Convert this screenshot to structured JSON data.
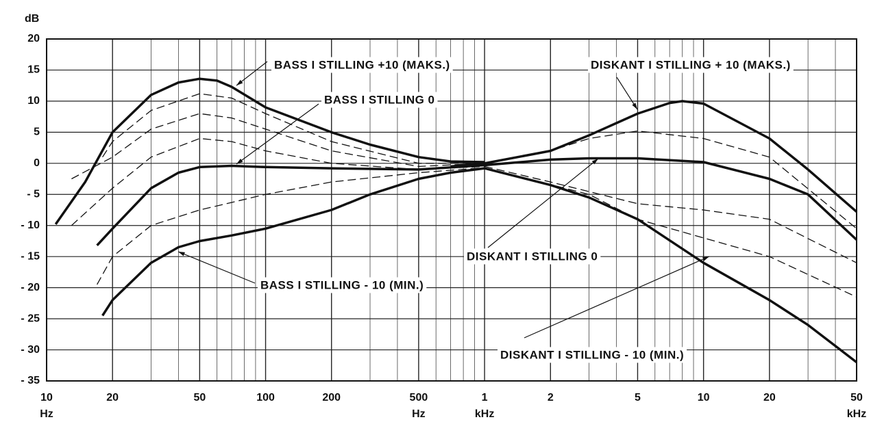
{
  "chart_data": {
    "type": "line",
    "ylabel": "dB",
    "xscale": "log",
    "grid": true,
    "xlim": [
      10,
      50000
    ],
    "ylim": [
      -35,
      20
    ],
    "xticks": [
      {
        "value": 10,
        "label": "10",
        "unit": "Hz"
      },
      20,
      50,
      100,
      200,
      {
        "value": 500,
        "label": "500",
        "unit": "Hz"
      },
      {
        "value": 1000,
        "label": "1",
        "unit": "kHz"
      },
      {
        "value": 2000,
        "label": "2"
      },
      {
        "value": 5000,
        "label": "5"
      },
      {
        "value": 10000,
        "label": "10"
      },
      {
        "value": 20000,
        "label": "20"
      },
      {
        "value": 50000,
        "label": "50",
        "unit": "kHz"
      }
    ],
    "x_minor_grid": [
      30,
      40,
      60,
      70,
      80,
      90,
      300,
      400,
      600,
      700,
      800,
      900,
      3000,
      4000,
      6000,
      7000,
      8000,
      9000,
      30000,
      40000
    ],
    "yticks": [
      20,
      15,
      10,
      5,
      0,
      {
        "value": -5,
        "label": "- 5"
      },
      {
        "value": -10,
        "label": "- 10"
      },
      {
        "value": -15,
        "label": "- 15"
      },
      {
        "value": -20,
        "label": "- 20"
      },
      {
        "value": -25,
        "label": "- 25"
      },
      {
        "value": -30,
        "label": "- 30"
      },
      {
        "value": -35,
        "label": "- 35"
      }
    ],
    "series": [
      {
        "name": "BASS I STILLING +10 (MAKS.)",
        "color": "#111",
        "x": [
          11,
          15,
          20,
          30,
          40,
          50,
          60,
          70,
          100,
          200,
          300,
          500,
          700,
          1000
        ],
        "values": [
          -9.8,
          -3,
          5,
          11,
          13,
          13.6,
          13.3,
          12.3,
          9,
          5,
          3,
          1,
          0.3,
          0.2
        ]
      },
      {
        "name": "BASS I STILLING 0",
        "color": "#111",
        "x": [
          17,
          20,
          30,
          40,
          50,
          70,
          100,
          200,
          500,
          1000
        ],
        "values": [
          -13.2,
          -10.5,
          -4,
          -1.5,
          -0.6,
          -0.4,
          -0.6,
          -0.8,
          -1,
          -0.3
        ]
      },
      {
        "name": "BASS I STILLING - 10 (MIN.)",
        "color": "#111",
        "x": [
          18,
          20,
          30,
          40,
          50,
          70,
          100,
          200,
          300,
          500,
          700,
          1000
        ],
        "values": [
          -24.5,
          -22,
          -16,
          -13.5,
          -12.5,
          -11.6,
          -10.5,
          -7.5,
          -5,
          -2.5,
          -1.5,
          -0.8
        ]
      },
      {
        "name": "DISKANT I STILLING + 10 (MAKS.)",
        "color": "#111",
        "x": [
          700,
          1000,
          2000,
          3000,
          5000,
          7000,
          8000,
          10000,
          20000,
          30000,
          50000
        ],
        "values": [
          -0.5,
          0,
          2,
          4.5,
          8,
          9.7,
          10,
          9.6,
          4,
          -1,
          -7.8
        ]
      },
      {
        "name": "DISKANT I STILLING 0",
        "color": "#111",
        "x": [
          1000,
          2000,
          3000,
          5000,
          10000,
          20000,
          30000,
          50000
        ],
        "values": [
          -0.3,
          0.6,
          0.8,
          0.8,
          0.2,
          -2.5,
          -5,
          -12.3
        ]
      },
      {
        "name": "DISKANT I STILLING - 10 (MIN.)",
        "color": "#111",
        "x": [
          1000,
          2000,
          3000,
          5000,
          10000,
          20000,
          30000,
          50000
        ],
        "values": [
          -0.8,
          -3.5,
          -5.5,
          -9,
          -16,
          -22,
          -26,
          -32
        ]
      },
      {
        "color": "#111",
        "dashed": true,
        "x": [
          18,
          20,
          30,
          50,
          70,
          100,
          200,
          500,
          1000
        ],
        "values": [
          1,
          3.5,
          8.5,
          11.2,
          10.5,
          8,
          3.5,
          0,
          0
        ]
      },
      {
        "color": "#111",
        "dashed": true,
        "x": [
          13,
          20,
          30,
          50,
          70,
          100,
          200,
          500,
          1000
        ],
        "values": [
          -2.5,
          1,
          5.5,
          8,
          7.3,
          5.5,
          2,
          -0.5,
          0
        ]
      },
      {
        "color": "#111",
        "dashed": true,
        "x": [
          13,
          20,
          30,
          50,
          70,
          100,
          200,
          500,
          1000
        ],
        "values": [
          -10,
          -4,
          1,
          4,
          3.5,
          2,
          0,
          -1,
          -0.5
        ]
      },
      {
        "color": "#111",
        "dashed": true,
        "x": [
          17,
          20,
          30,
          50,
          100,
          200,
          500,
          1000
        ],
        "values": [
          -19.5,
          -15,
          -10,
          -7.5,
          -5,
          -3,
          -1.5,
          -0.7
        ]
      },
      {
        "color": "#111",
        "dashed": true,
        "x": [
          1000,
          2000,
          3000,
          5000,
          10000,
          20000,
          50000
        ],
        "values": [
          0,
          2,
          4,
          5.2,
          4,
          1,
          -10.5
        ]
      },
      {
        "color": "#111",
        "dashed": true,
        "x": [
          1000,
          2000,
          5000,
          10000,
          20000,
          50000
        ],
        "values": [
          -0.5,
          -3,
          -6.5,
          -7.5,
          -9,
          -16
        ]
      },
      {
        "color": "#111",
        "dashed": true,
        "x": [
          1000,
          3000,
          5000,
          10000,
          20000,
          50000
        ],
        "values": [
          -0.7,
          -5,
          -9,
          -12,
          -15,
          -21.5
        ]
      }
    ]
  }
}
